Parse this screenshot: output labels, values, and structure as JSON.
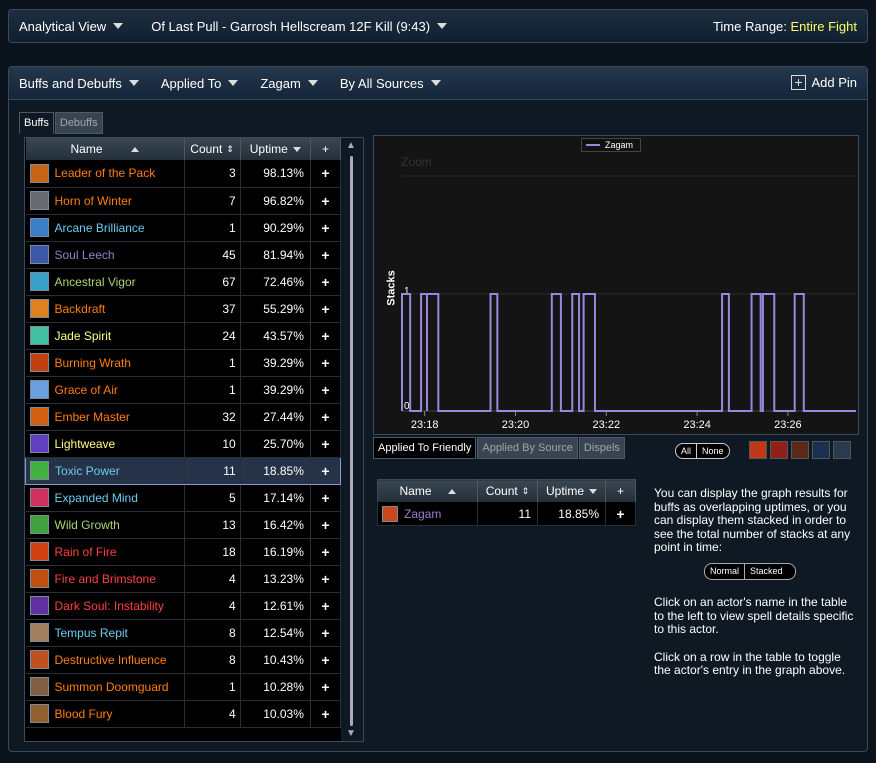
{
  "top_bar": {
    "view": "Analytical View",
    "fight": "Of Last Pull - Garrosh Hellscream 12F Kill (9:43)",
    "time_range_label": "Time Range:",
    "time_range_value": "Entire Fight"
  },
  "filter_bar": {
    "mode": "Buffs and Debuffs",
    "applied_to": "Applied To",
    "actor": "Zagam",
    "sources": "By All Sources",
    "add_pin": "Add Pin"
  },
  "tabs": {
    "buffs": "Buffs",
    "debuffs": "Debuffs"
  },
  "buffs_table": {
    "headers": {
      "name": "Name",
      "count": "Count",
      "uptime": "Uptime",
      "plus": "+"
    },
    "rows": [
      {
        "name": "Leader of the Pack",
        "count": "3",
        "uptime": "98.13%",
        "color": "#ff7d0a",
        "icon": "#c86418"
      },
      {
        "name": "Horn of Winter",
        "count": "7",
        "uptime": "96.82%",
        "color": "#ff7d0a",
        "icon": "#666a70"
      },
      {
        "name": "Arcane Brilliance",
        "count": "1",
        "uptime": "90.29%",
        "color": "#69ccf0",
        "icon": "#3a7ec8"
      },
      {
        "name": "Soul Leech",
        "count": "45",
        "uptime": "81.94%",
        "color": "#9482c9",
        "icon": "#3a58a8"
      },
      {
        "name": "Ancestral Vigor",
        "count": "67",
        "uptime": "72.46%",
        "color": "#abd473",
        "icon": "#3aa0c8"
      },
      {
        "name": "Backdraft",
        "count": "37",
        "uptime": "55.29%",
        "color": "#ff7d0a",
        "icon": "#e08020"
      },
      {
        "name": "Jade Spirit",
        "count": "24",
        "uptime": "43.57%",
        "color": "#ffff88",
        "icon": "#40c0a0"
      },
      {
        "name": "Burning Wrath",
        "count": "1",
        "uptime": "39.29%",
        "color": "#ff7d0a",
        "icon": "#c04010"
      },
      {
        "name": "Grace of Air",
        "count": "1",
        "uptime": "39.29%",
        "color": "#ff7d0a",
        "icon": "#6aa0e0"
      },
      {
        "name": "Ember Master",
        "count": "32",
        "uptime": "27.44%",
        "color": "#ff7d0a",
        "icon": "#d06010"
      },
      {
        "name": "Lightweave",
        "count": "10",
        "uptime": "25.70%",
        "color": "#ffff88",
        "icon": "#6040c0"
      },
      {
        "name": "Toxic Power",
        "count": "11",
        "uptime": "18.85%",
        "color": "#69ccf0",
        "icon": "#40b040"
      },
      {
        "name": "Expanded Mind",
        "count": "5",
        "uptime": "17.14%",
        "color": "#69ccf0",
        "icon": "#d03060"
      },
      {
        "name": "Wild Growth",
        "count": "13",
        "uptime": "16.42%",
        "color": "#abd473",
        "icon": "#40a040"
      },
      {
        "name": "Rain of Fire",
        "count": "18",
        "uptime": "16.19%",
        "color": "#ff4040",
        "icon": "#d04010"
      },
      {
        "name": "Fire and Brimstone",
        "count": "4",
        "uptime": "13.23%",
        "color": "#ff4040",
        "icon": "#c05010"
      },
      {
        "name": "Dark Soul: Instability",
        "count": "4",
        "uptime": "12.61%",
        "color": "#ff4040",
        "icon": "#6030a0"
      },
      {
        "name": "Tempus Repit",
        "count": "8",
        "uptime": "12.54%",
        "color": "#69ccf0",
        "icon": "#a08060"
      },
      {
        "name": "Destructive Influence",
        "count": "8",
        "uptime": "10.43%",
        "color": "#ff7d0a",
        "icon": "#c05020"
      },
      {
        "name": "Summon Doomguard",
        "count": "1",
        "uptime": "10.28%",
        "color": "#ff7d0a",
        "icon": "#806040"
      },
      {
        "name": "Blood Fury",
        "count": "4",
        "uptime": "10.03%",
        "color": "#ff7d0a",
        "icon": "#906030"
      }
    ],
    "selected_index": 11
  },
  "chart_data": {
    "type": "line",
    "legend": [
      "Zagam"
    ],
    "ylabel": "Stacks",
    "zoom_label": "Zoom",
    "ylim": [
      0,
      1
    ],
    "y_ticks": [
      "0",
      "1"
    ],
    "x_ticks": [
      "23:18",
      "23:20",
      "23:22",
      "23:24",
      "23:26"
    ],
    "series": [
      {
        "name": "Zagam",
        "color": "#9988dd",
        "segments": [
          [
            0.0,
            0.18
          ],
          [
            0.42,
            0.55
          ],
          [
            0.55,
            0.8
          ],
          [
            1.95,
            2.1
          ],
          [
            3.3,
            3.5
          ],
          [
            3.75,
            3.9
          ],
          [
            4.0,
            4.25
          ],
          [
            7.05,
            7.2
          ],
          [
            7.7,
            7.9
          ],
          [
            7.95,
            8.2
          ],
          [
            8.65,
            8.85
          ]
        ]
      }
    ]
  },
  "graph_tabs": {
    "friendly": "Applied To Friendly",
    "source": "Applied By Source",
    "dispels": "Dispels"
  },
  "all_none": {
    "all": "All",
    "none": "None"
  },
  "actor_table": {
    "headers": {
      "name": "Name",
      "count": "Count",
      "uptime": "Uptime",
      "plus": "+"
    },
    "row": {
      "name": "Zagam",
      "count": "11",
      "uptime": "18.85%",
      "color": "#9482c9"
    }
  },
  "help": {
    "p1": "You can display the graph results for buffs as overlapping uptimes, or you can display them stacked in order to see the total number of stacks at any point in time:",
    "normal": "Normal",
    "stacked": "Stacked",
    "p2": "Click on an actor's name in the table to the left to view spell details specific to this actor.",
    "p3": "Click on a row in the table to toggle the actor's entry in the graph above."
  }
}
